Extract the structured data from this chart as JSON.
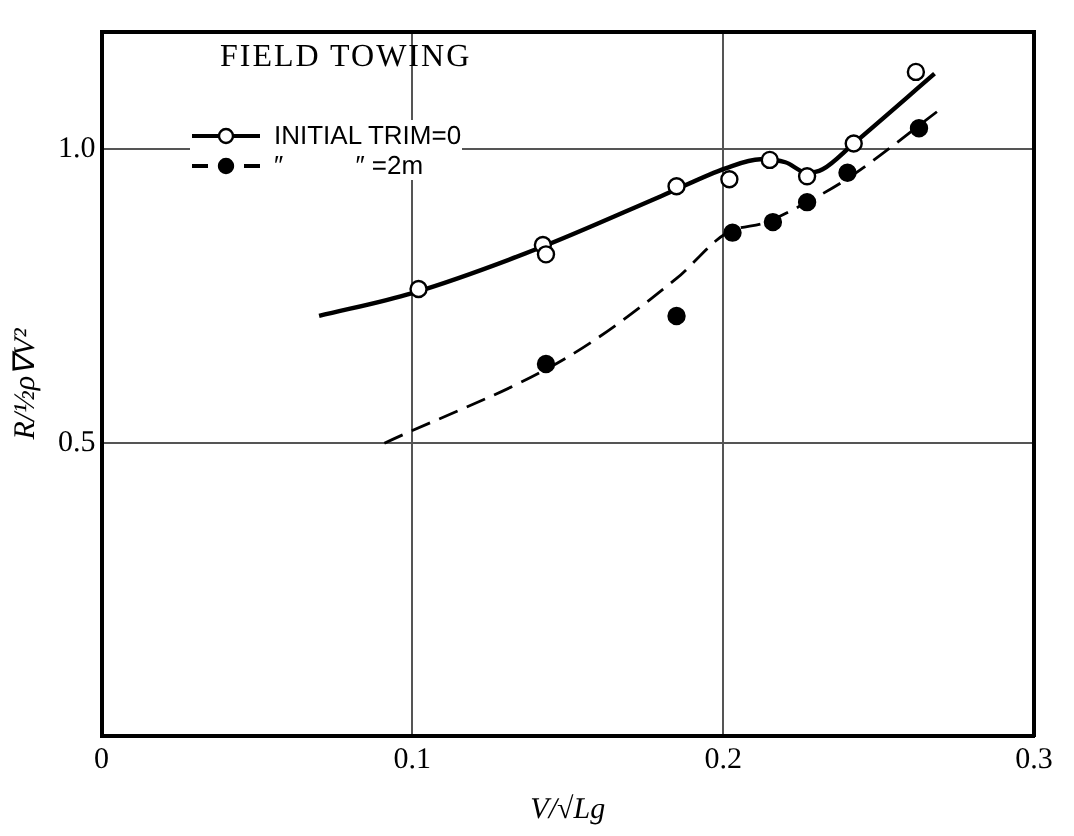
{
  "chart_data": {
    "type": "scatter",
    "title": "FIELD TOWING",
    "xlabel": "V/√Lg",
    "ylabel": "R/½ρ∇V²",
    "xlim": [
      0,
      0.3
    ],
    "xticks": [
      0,
      0.1,
      0.2,
      0.3
    ],
    "ylim": [
      0,
      1.2
    ],
    "yticks": [
      0.5,
      {
        "value": 1,
        "label": "1.0"
      }
    ],
    "grid": true,
    "legend": "top left",
    "series": [
      {
        "name": "INITIAL TRIM=0",
        "color": "#000000",
        "marker": "circle",
        "x": [
          0.102,
          0.142,
          0.143,
          0.185,
          0.202,
          0.215,
          0.227,
          0.242,
          0.262
        ],
        "values": [
          0.762,
          0.837,
          0.821,
          0.937,
          0.949,
          0.982,
          0.954,
          1.01,
          1.132
        ]
      },
      {
        "name": "″          ″ =2m",
        "color": "#000000",
        "marker": "circle",
        "x": [
          0.143,
          0.185,
          0.203,
          0.216,
          0.227,
          0.24,
          0.263
        ],
        "values": [
          0.634,
          0.716,
          0.858,
          0.876,
          0.91,
          0.96,
          1.036
        ]
      },
      {
        "type": "line",
        "color": "#000000",
        "marker": "none",
        "line_style": "solid",
        "x": [
          0.07,
          0.1,
          0.14,
          0.18,
          0.201,
          0.212,
          0.22,
          0.227,
          0.232,
          0.242,
          0.268
        ],
        "values": [
          0.716,
          0.755,
          0.83,
          0.92,
          0.968,
          0.983,
          0.978,
          0.96,
          0.966,
          1.01,
          1.129
        ]
      },
      {
        "type": "line",
        "color": "#000000",
        "marker": "none",
        "line_style": "dashed",
        "x": [
          0.091,
          0.15,
          0.185,
          0.201,
          0.214,
          0.227,
          0.24,
          0.271
        ],
        "values": [
          0.499,
          0.646,
          0.78,
          0.857,
          0.876,
          0.91,
          0.95,
          1.073
        ]
      }
    ]
  }
}
